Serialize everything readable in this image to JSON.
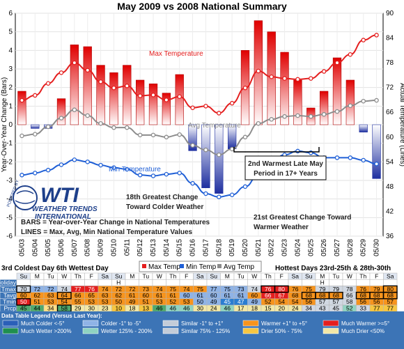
{
  "chart_data": {
    "type": "bar",
    "title": "May 2009 vs 2008 National Summary",
    "ylabel_left": "Year-Over-Year Change (Bars)",
    "ylabel_right": "Actual Temperature (Lines)",
    "ylim_left": [
      -6,
      6
    ],
    "ylim_right": [
      36,
      90
    ],
    "yticks_left": [
      6,
      5,
      4,
      3,
      2,
      1,
      0,
      -1,
      -2,
      -3,
      -4,
      -5,
      -6
    ],
    "yticks_right": [
      90,
      84,
      78,
      72,
      66,
      60,
      54,
      48,
      42,
      36
    ],
    "categories": [
      "05/03",
      "05/04",
      "05/05",
      "05/06",
      "05/07",
      "05/08",
      "05/09",
      "05/10",
      "05/11",
      "05/12",
      "05/13",
      "05/14",
      "05/15",
      "05/16",
      "05/17",
      "05/18",
      "05/19",
      "05/20",
      "05/21",
      "05/22",
      "05/23",
      "05/24",
      "05/25",
      "05/26",
      "05/27",
      "05/28",
      "05/29",
      "05/30"
    ],
    "bars": [
      1.8,
      -0.2,
      -0.2,
      1.4,
      4.3,
      4.2,
      3.2,
      2.8,
      3.2,
      2.4,
      2.2,
      1.7,
      2.7,
      -1.4,
      -3.4,
      -3.7,
      -1.3,
      4.0,
      5.6,
      5.0,
      3.9,
      2.4,
      0.9,
      1.8,
      3.6,
      2.4,
      -0.4,
      -2.9
    ],
    "series": [
      {
        "name": "Max Temp",
        "color": "#e41e1e",
        "values": [
          68.9,
          70.1,
          73.0,
          75.6,
          78.0,
          76.2,
          73.4,
          71.9,
          72.4,
          70.0,
          70.2,
          69.0,
          69.8,
          67.1,
          67.5,
          65.8,
          68.2,
          71.9,
          76.0,
          74.6,
          74.2,
          74.0,
          74.2,
          75.9,
          78.0,
          80.0,
          83.5,
          84.7
        ]
      },
      {
        "name": "Min Temp",
        "color": "#1f5fd6",
        "values": [
          50.8,
          51.3,
          52.0,
          53.3,
          54.5,
          54.0,
          53.2,
          52.6,
          52.2,
          50.8,
          50.6,
          51.0,
          51.3,
          48.8,
          46.3,
          45.5,
          46.0,
          48.0,
          50.8,
          54.0,
          55.7,
          56.6,
          56.2,
          55.0,
          55.0,
          55.0,
          54.4,
          53.5
        ]
      },
      {
        "name": "Avg Temp",
        "color": "#8c8c8c",
        "values": [
          60.3,
          60.7,
          62.5,
          64.6,
          66.6,
          65.2,
          63.3,
          62.3,
          62.3,
          60.5,
          60.5,
          60.0,
          60.6,
          58.0,
          56.9,
          55.7,
          57.1,
          60.0,
          63.3,
          64.3,
          65.0,
          65.2,
          65.0,
          65.5,
          66.2,
          67.6,
          68.7,
          68.9
        ]
      }
    ],
    "line_labels": {
      "max": "Max Temperature",
      "avg": "Avg Temperature",
      "min": "Min Temperature"
    },
    "annotations": {
      "late_may": [
        "2nd Warmest Late May",
        "Period in 17+ Years"
      ],
      "colder": [
        "18th Greatest Change",
        "Toward Colder Weather"
      ],
      "bars_def": "BARS = Year-over-Year Change in National Temperatures",
      "lines_def": "LINES = Max, Avg, Min National Temperature Values",
      "warmer": [
        "21st Greatest Change Toward",
        "Warmer Weather"
      ]
    },
    "legend": [
      "Max Temp",
      "Min Temp",
      "Avg Temp"
    ],
    "grid": true
  },
  "logo": {
    "big": "WTI",
    "line1": "WEATHER TRENDS",
    "line2": "INTERNATIONAL",
    "ring": "POWERED BY"
  },
  "highlights": {
    "left": "3rd Coldest Day   6th Wettest Day",
    "right": "Hottest Days 23rd-25th & 28th-30th"
  },
  "table": {
    "days": [
      "Su",
      "M",
      "Tu",
      "W",
      "Th",
      "F",
      "Sa",
      "Su",
      "M",
      "Tu",
      "W",
      "Th",
      "F",
      "Sa",
      "Su",
      "M",
      "Tu",
      "W",
      "Th",
      "F",
      "Sa",
      "Su",
      "M",
      "Tu",
      "W",
      "Th",
      "F",
      "Sa"
    ],
    "holiday_row": [
      "",
      "",
      "",
      "",
      "",
      "",
      "",
      "H",
      "",
      "",
      "",
      "",
      "",
      "",
      "",
      "",
      "",
      "",
      "",
      "",
      "",
      "",
      "H",
      "",
      "",
      "",
      "",
      ""
    ],
    "rows": [
      {
        "label": "Holiday",
        "values": [
          "",
          "",
          "",
          "",
          "",
          "",
          "",
          "H",
          "",
          "",
          "",
          "",
          "",
          "",
          "",
          "",
          "",
          "",
          "",
          "",
          "",
          "",
          "H",
          "",
          "",
          "",
          "",
          ""
        ],
        "colors": [
          "#ffffff",
          "#ffffff",
          "#ffffff",
          "#ffffff",
          "#ffffff",
          "#ffffff",
          "#ffffff",
          "#ffffff",
          "#ffffff",
          "#ffffff",
          "#ffffff",
          "#ffffff",
          "#ffffff",
          "#ffffff",
          "#ffffff",
          "#ffffff",
          "#ffffff",
          "#ffffff",
          "#ffffff",
          "#ffffff",
          "#ffffff",
          "#ffffff",
          "#ffffff",
          "#ffffff",
          "#ffffff",
          "#ffffff",
          "#ffffff",
          "#ffffff"
        ]
      },
      {
        "label": "Tmax",
        "values": [
          "70",
          "72",
          "72",
          "74",
          "77",
          "76",
          "74",
          "72",
          "72",
          "73",
          "74",
          "75",
          "74",
          "75",
          "77",
          "75",
          "73",
          "74",
          "76",
          "80",
          "76",
          "75",
          "79",
          "79",
          "78",
          "76",
          "79",
          "80"
        ],
        "colors": [
          "#d1d8e2",
          "#8fb3e6",
          "#8fb3e6",
          "#d1d8e2",
          "#e41e1e",
          "#e41e1e",
          "#f7941d",
          "#f7941d",
          "#f7941d",
          "#f7941d",
          "#f7941d",
          "#f7941d",
          "#f7941d",
          "#f7941d",
          "#8fb3e6",
          "#8fb3e6",
          "#8fb3e6",
          "#d1d8e2",
          "#e41e1e",
          "#e41e1e",
          "#f7941d",
          "#f7941d",
          "#d1d8e2",
          "#d1d8e2",
          "#d1d8e2",
          "#f7941d",
          "#f7941d",
          "#f7941d"
        ]
      },
      {
        "label": "Tavg",
        "values": [
          "60",
          "62",
          "63",
          "64",
          "66",
          "65",
          "63",
          "62",
          "61",
          "60",
          "61",
          "61",
          "60",
          "61",
          "60",
          "61",
          "61",
          "60",
          "66",
          "67",
          "68",
          "68",
          "68",
          "68",
          "66",
          "68",
          "68",
          "68"
        ],
        "colors": [
          "#f7941d",
          "#f7941d",
          "#f7941d",
          "#f7941d",
          "#f7941d",
          "#f7941d",
          "#f7941d",
          "#f7941d",
          "#f7941d",
          "#f7941d",
          "#f7941d",
          "#f7941d",
          "#8fb3e6",
          "#8fb3e6",
          "#8fb3e6",
          "#8fb3e6",
          "#8fb3e6",
          "#f7941d",
          "#e41e1e",
          "#e41e1e",
          "#f7941d",
          "#f7941d",
          "#f7941d",
          "#f7941d",
          "#d1d8e2",
          "#f7941d",
          "#f7941d",
          "#f7941d"
        ]
      },
      {
        "label": "Tmin",
        "values": [
          "50",
          "51",
          "53",
          "54",
          "55",
          "53",
          "53",
          "50",
          "49",
          "51",
          "53",
          "52",
          "53",
          "50",
          "49",
          "45",
          "47",
          "49",
          "52",
          "54",
          "54",
          "56",
          "57",
          "57",
          "58",
          "56",
          "56",
          "57"
        ],
        "colors": [
          "#e41e1e",
          "#f7941d",
          "#f7941d",
          "#f7941d",
          "#f7941d",
          "#f7941d",
          "#f7941d",
          "#f7941d",
          "#f7941d",
          "#f7941d",
          "#f7941d",
          "#f7941d",
          "#f7941d",
          "#8fb3e6",
          "#8fb3e6",
          "#2a7dd1",
          "#2a7dd1",
          "#8fb3e6",
          "#f7941d",
          "#f7941d",
          "#f7941d",
          "#f7941d",
          "#d1d8e2",
          "#d1d8e2",
          "#d1d8e2",
          "#f7941d",
          "#f7941d",
          "#f7941d"
        ]
      },
      {
        "label": "Prcp",
        "values": [
          "45",
          "44",
          "34",
          "58",
          "29",
          "30",
          "23",
          "10",
          "18",
          "13",
          "46",
          "46",
          "46",
          "30",
          "24",
          "46",
          "17",
          "18",
          "15",
          "20",
          "24",
          "34",
          "43",
          "45",
          "52",
          "33",
          "77",
          "77"
        ],
        "colors": [
          "#4fa86e",
          "#4fa86e",
          "#ffe08a",
          "#4fa86e",
          "#f2e7a6",
          "#f2e7a6",
          "#f2e7a6",
          "#f7c640",
          "#f2e7a6",
          "#f7c640",
          "#4fa86e",
          "#8fd3c1",
          "#8fd3c1",
          "#f2e7a6",
          "#f2e7a6",
          "#8fd3c1",
          "#f2e7a6",
          "#f2e7a6",
          "#f2e7a6",
          "#f2e7a6",
          "#f2e7a6",
          "#d1d8e2",
          "#d1d8e2",
          "#d1d8e2",
          "#8fd3c1",
          "#d1d8e2",
          "#f7c640",
          "#f7c640"
        ]
      },
      {
        "label": "Snow",
        "values": [
          ".0",
          "1.0",
          "2.0",
          ".0",
          ".1",
          "2.0",
          ".1",
          ".0",
          "2.0",
          ".0",
          ".0",
          ".0",
          "1.2",
          ".0",
          ".0",
          ".0",
          ".0",
          ".0",
          ".0",
          ".0",
          ".0",
          ".0",
          ".0",
          ".0",
          ".0",
          ".0",
          ".0",
          ".0"
        ],
        "colors": [
          "#ffffff",
          "#ffffff",
          "#ffffff",
          "#ffffff",
          "#ffffff",
          "#ffffff",
          "#ffffff",
          "#ffffff",
          "#ffffff",
          "#ffffff",
          "#ffffff",
          "#ffffff",
          "#ffffff",
          "#ffffff",
          "#ffffff",
          "#ffffff",
          "#ffffff",
          "#ffffff",
          "#ffffff",
          "#ffffff",
          "#ffffff",
          "#ffffff",
          "#ffffff",
          "#ffffff",
          "#ffffff",
          "#ffffff",
          "#ffffff",
          "#ffffff"
        ]
      }
    ],
    "boxed": [
      [
        1,
        0
      ],
      [
        2,
        3
      ],
      [
        3,
        0
      ],
      [
        4,
        3
      ],
      [
        1,
        18
      ],
      [
        1,
        19
      ],
      [
        2,
        21
      ],
      [
        2,
        22
      ],
      [
        2,
        23
      ],
      [
        2,
        25
      ],
      [
        2,
        26
      ],
      [
        2,
        27
      ],
      [
        1,
        27
      ]
    ],
    "legend_title": "Data Table Legend (Versus Last Year):",
    "legend": [
      {
        "label": "Much Colder <-5°",
        "color": "#2a5fb8"
      },
      {
        "label": "Colder -1° to -5°",
        "color": "#8fb3e6"
      },
      {
        "label": "Similar -1° to +1°",
        "color": "#c3ccd8"
      },
      {
        "label": "Warmer +1° to +5°",
        "color": "#f7941d"
      },
      {
        "label": "Much Warmer >=5°",
        "color": "#e41e1e"
      },
      {
        "label": "Much Wetter >200%",
        "color": "#1f8f4e"
      },
      {
        "label": "Wetter 125% - 200%",
        "color": "#8fd3c1"
      },
      {
        "label": "Similar 75% - 125%",
        "color": "#c3ccd8"
      },
      {
        "label": "Drier 50% - 75%",
        "color": "#f7c640"
      },
      {
        "label": "Much Drier <50%",
        "color": "#f2e7a6"
      }
    ]
  }
}
